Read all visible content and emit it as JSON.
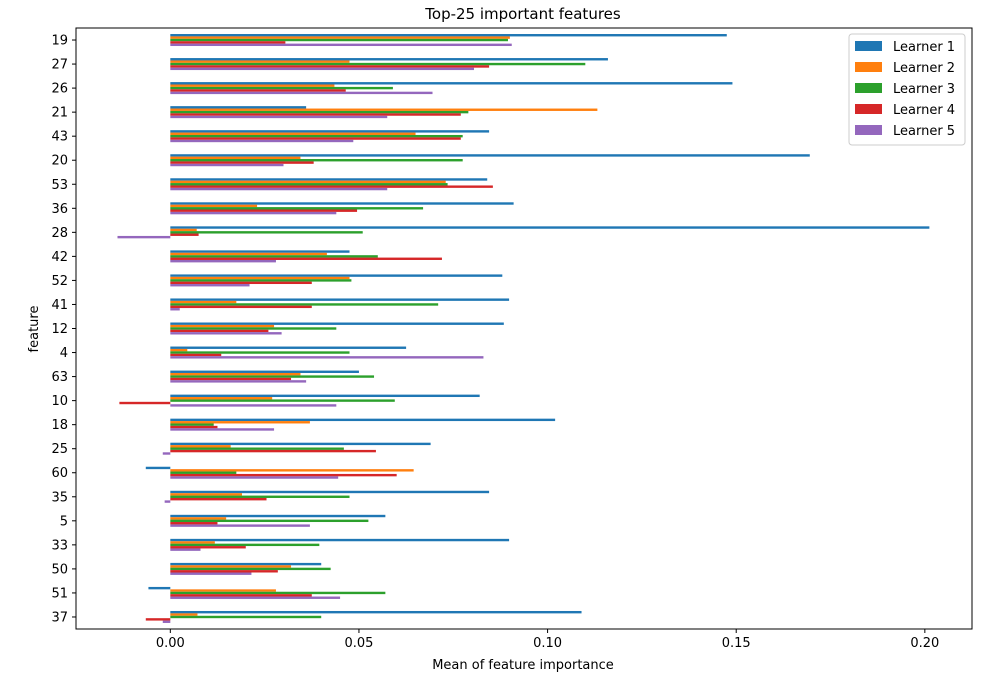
{
  "chart_data": {
    "type": "bar",
    "orientation": "horizontal",
    "title": "Top-25 important features",
    "xlabel": "Mean of feature importance",
    "ylabel": "feature",
    "xlim": [
      -0.025,
      0.2125
    ],
    "xticks": [
      0.0,
      0.05,
      0.1,
      0.15,
      0.2
    ],
    "xtick_labels": [
      "0.00",
      "0.05",
      "0.10",
      "0.15",
      "0.20"
    ],
    "grid": false,
    "legend_position": "top-right",
    "categories": [
      "19",
      "27",
      "26",
      "21",
      "43",
      "20",
      "53",
      "36",
      "28",
      "42",
      "52",
      "41",
      "12",
      "4",
      "63",
      "10",
      "18",
      "25",
      "60",
      "35",
      "5",
      "33",
      "50",
      "51",
      "37"
    ],
    "series": [
      {
        "name": "Learner 1",
        "color": "#1f77b4",
        "values": [
          0.1475,
          0.116,
          0.149,
          0.036,
          0.0845,
          0.1695,
          0.084,
          0.091,
          0.2012,
          0.0475,
          0.088,
          0.0898,
          0.0884,
          0.0625,
          0.05,
          0.082,
          0.102,
          0.069,
          -0.0065,
          0.0845,
          0.057,
          0.0898,
          0.04,
          -0.0058,
          0.109
        ]
      },
      {
        "name": "Learner 2",
        "color": "#ff7f0e",
        "values": [
          0.09,
          0.0475,
          0.0435,
          0.1132,
          0.065,
          0.0345,
          0.073,
          0.023,
          0.007,
          0.0415,
          0.0475,
          0.0175,
          0.0275,
          0.0045,
          0.0345,
          0.027,
          0.037,
          0.016,
          0.0645,
          0.019,
          0.0148,
          0.0118,
          0.032,
          0.028,
          0.0072
        ]
      },
      {
        "name": "Learner 3",
        "color": "#2ca02c",
        "values": [
          0.0895,
          0.11,
          0.059,
          0.079,
          0.0775,
          0.0775,
          0.0735,
          0.067,
          0.051,
          0.055,
          0.048,
          0.071,
          0.044,
          0.0475,
          0.054,
          0.0595,
          0.0115,
          0.046,
          0.0175,
          0.0475,
          0.0525,
          0.0395,
          0.0425,
          0.057,
          0.04
        ]
      },
      {
        "name": "Learner 4",
        "color": "#d62728",
        "values": [
          0.0305,
          0.0845,
          0.0465,
          0.077,
          0.077,
          0.038,
          0.0855,
          0.0495,
          0.0075,
          0.072,
          0.0375,
          0.0375,
          0.026,
          0.0135,
          0.032,
          -0.0135,
          0.0125,
          0.0545,
          0.06,
          0.0255,
          0.0125,
          0.02,
          0.0285,
          0.0375,
          -0.0065
        ]
      },
      {
        "name": "Learner 5",
        "color": "#9467bd",
        "values": [
          0.0905,
          0.0805,
          0.0695,
          0.0575,
          0.0485,
          0.03,
          0.0575,
          0.044,
          -0.014,
          0.028,
          0.021,
          0.0025,
          0.0295,
          0.083,
          0.036,
          0.044,
          0.0275,
          -0.002,
          0.0445,
          -0.0015,
          0.037,
          0.008,
          0.0215,
          0.045,
          -0.002
        ]
      }
    ]
  }
}
